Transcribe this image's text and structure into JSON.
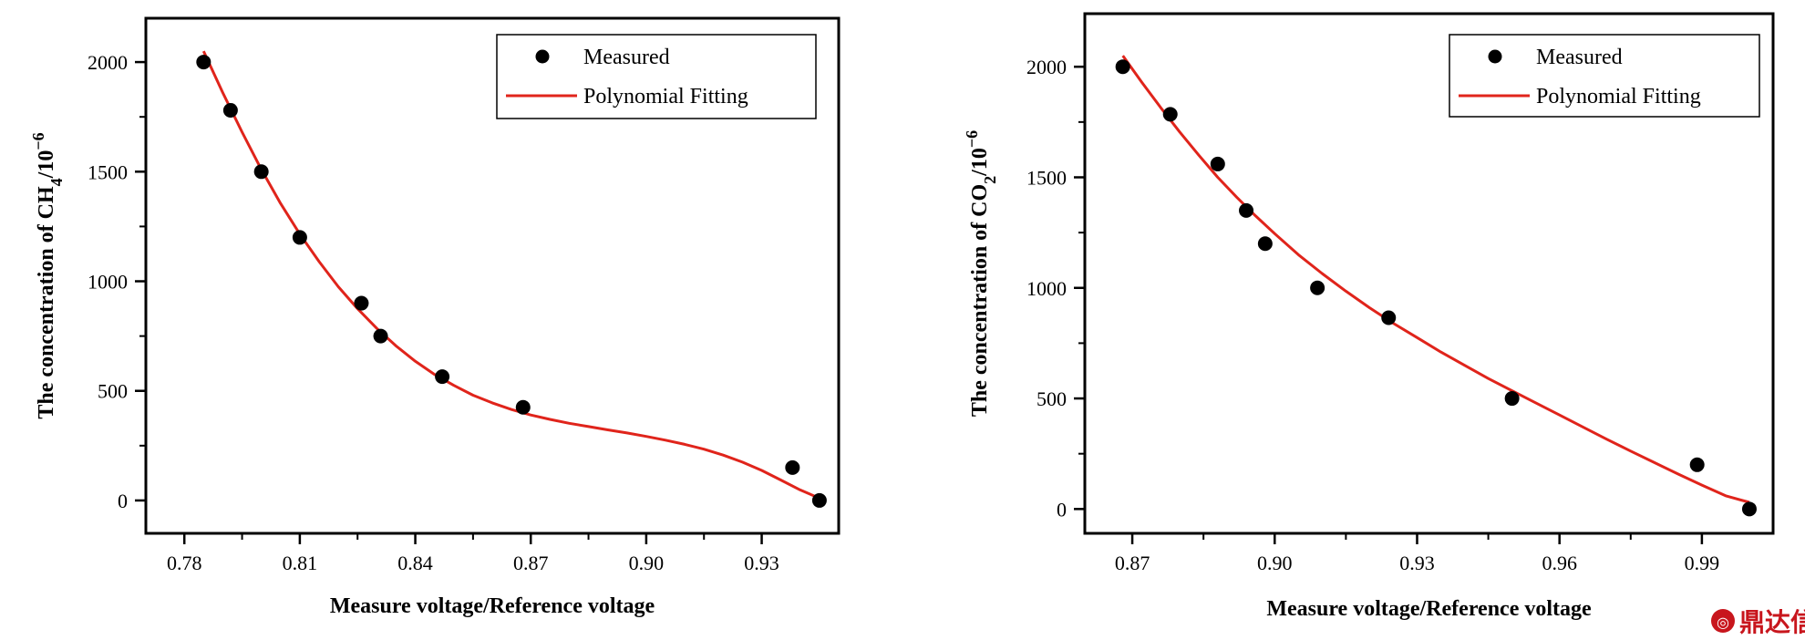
{
  "chart_data": [
    {
      "type": "scatter",
      "title": "",
      "xlabel": "Measure voltage/Reference voltage",
      "ylabel": {
        "prefix": "The concentration of CH",
        "subscript": "4",
        "mid": "/10",
        "superscript": "−6"
      },
      "xlim": [
        0.77,
        0.95
      ],
      "ylim": [
        -150,
        2200
      ],
      "xticks": [
        0.78,
        0.81,
        0.84,
        0.87,
        0.9,
        0.93
      ],
      "xtick_labels": [
        "0.78",
        "0.81",
        "0.84",
        "0.87",
        "0.90",
        "0.93"
      ],
      "yticks": [
        0,
        500,
        1000,
        1500,
        2000
      ],
      "ytick_labels": [
        "0",
        "500",
        "1000",
        "1500",
        "2000"
      ],
      "legend_position": "top-right",
      "series": [
        {
          "name": "Measured",
          "kind": "points",
          "color": "#000000",
          "x": [
            0.785,
            0.792,
            0.8,
            0.81,
            0.826,
            0.831,
            0.847,
            0.868,
            0.938,
            0.945
          ],
          "y": [
            2000,
            1780,
            1500,
            1200,
            900,
            750,
            565,
            425,
            150,
            0
          ]
        },
        {
          "name": "Polynomial Fitting",
          "kind": "line",
          "color": "#e0241b",
          "x": [
            0.785,
            0.79,
            0.795,
            0.8,
            0.805,
            0.81,
            0.815,
            0.82,
            0.825,
            0.83,
            0.835,
            0.84,
            0.845,
            0.85,
            0.855,
            0.86,
            0.865,
            0.87,
            0.875,
            0.88,
            0.885,
            0.89,
            0.895,
            0.9,
            0.905,
            0.91,
            0.915,
            0.92,
            0.925,
            0.93,
            0.935,
            0.94,
            0.945
          ],
          "y": [
            2050,
            1860,
            1680,
            1510,
            1355,
            1215,
            1090,
            975,
            875,
            785,
            705,
            635,
            575,
            525,
            480,
            445,
            415,
            390,
            370,
            352,
            337,
            322,
            308,
            292,
            275,
            256,
            234,
            207,
            175,
            137,
            93,
            48,
            10
          ]
        }
      ]
    },
    {
      "type": "scatter",
      "title": "",
      "xlabel": "Measure voltage/Reference voltage",
      "ylabel": {
        "prefix": "The concentration of CO",
        "subscript": "2",
        "mid": "/10",
        "superscript": "−6"
      },
      "xlim": [
        0.86,
        1.005
      ],
      "ylim": [
        -110,
        2240
      ],
      "xticks": [
        0.87,
        0.9,
        0.93,
        0.96,
        0.99
      ],
      "xtick_labels": [
        "0.87",
        "0.90",
        "0.93",
        "0.96",
        "0.99"
      ],
      "yticks": [
        0,
        500,
        1000,
        1500,
        2000
      ],
      "ytick_labels": [
        "0",
        "500",
        "1000",
        "1500",
        "2000"
      ],
      "legend_position": "top-right",
      "series": [
        {
          "name": "Measured",
          "kind": "points",
          "color": "#000000",
          "x": [
            0.868,
            0.878,
            0.888,
            0.894,
            0.898,
            0.909,
            0.924,
            0.95,
            0.989,
            1.0
          ],
          "y": [
            2000,
            1785,
            1560,
            1350,
            1200,
            1000,
            865,
            500,
            200,
            0
          ]
        },
        {
          "name": "Polynomial Fitting",
          "kind": "line",
          "color": "#e0241b",
          "x": [
            0.868,
            0.872,
            0.876,
            0.88,
            0.884,
            0.888,
            0.892,
            0.896,
            0.9,
            0.905,
            0.91,
            0.915,
            0.92,
            0.925,
            0.93,
            0.935,
            0.94,
            0.945,
            0.95,
            0.955,
            0.96,
            0.965,
            0.97,
            0.975,
            0.98,
            0.985,
            0.99,
            0.995,
            1.0
          ],
          "y": [
            2050,
            1930,
            1815,
            1705,
            1600,
            1500,
            1410,
            1325,
            1245,
            1150,
            1065,
            985,
            910,
            840,
            775,
            710,
            650,
            590,
            535,
            480,
            425,
            370,
            315,
            262,
            210,
            158,
            108,
            60,
            30
          ]
        }
      ]
    }
  ],
  "legend": {
    "measured_label": "Measured",
    "fit_label": "Polynomial Fitting"
  },
  "watermark": {
    "text": "鼎达信",
    "color": "#c8161d"
  }
}
